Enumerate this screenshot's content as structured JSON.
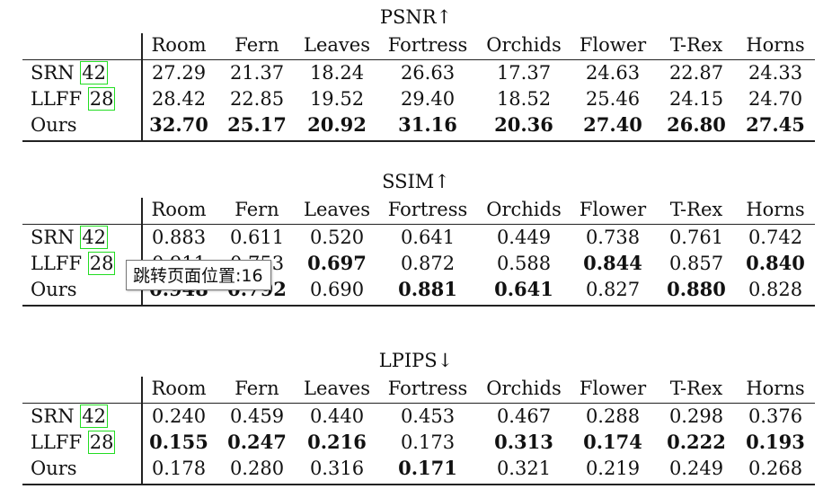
{
  "columns": [
    "Room",
    "Fern",
    "Leaves",
    "Fortress",
    "Orchids",
    "Flower",
    "T-Rex",
    "Horns"
  ],
  "tables": [
    {
      "title": "PSNR↑",
      "rows": [
        {
          "method": "SRN",
          "cite": "42",
          "values": [
            "27.29",
            "21.37",
            "18.24",
            "26.63",
            "17.37",
            "24.63",
            "22.87",
            "24.33"
          ],
          "bold": [
            false,
            false,
            false,
            false,
            false,
            false,
            false,
            false
          ]
        },
        {
          "method": "LLFF",
          "cite": "28",
          "values": [
            "28.42",
            "22.85",
            "19.52",
            "29.40",
            "18.52",
            "25.46",
            "24.15",
            "24.70"
          ],
          "bold": [
            false,
            false,
            false,
            false,
            false,
            false,
            false,
            false
          ]
        },
        {
          "method": "Ours",
          "cite": "",
          "values": [
            "32.70",
            "25.17",
            "20.92",
            "31.16",
            "20.36",
            "27.40",
            "26.80",
            "27.45"
          ],
          "bold": [
            true,
            true,
            true,
            true,
            true,
            true,
            true,
            true
          ]
        }
      ]
    },
    {
      "title": "SSIM↑",
      "rows": [
        {
          "method": "SRN",
          "cite": "42",
          "values": [
            "0.883",
            "0.611",
            "0.520",
            "0.641",
            "0.449",
            "0.738",
            "0.761",
            "0.742"
          ],
          "bold": [
            false,
            false,
            false,
            false,
            false,
            false,
            false,
            false
          ]
        },
        {
          "method": "LLFF",
          "cite": "28",
          "values": [
            "0.911",
            "0.753",
            "0.697",
            "0.872",
            "0.588",
            "0.844",
            "0.857",
            "0.840"
          ],
          "bold": [
            false,
            false,
            true,
            false,
            false,
            true,
            false,
            true
          ]
        },
        {
          "method": "Ours",
          "cite": "",
          "values": [
            "0.948",
            "0.792",
            "0.690",
            "0.881",
            "0.641",
            "0.827",
            "0.880",
            "0.828"
          ],
          "bold": [
            true,
            true,
            false,
            true,
            true,
            false,
            true,
            false
          ]
        }
      ]
    },
    {
      "title": "LPIPS↓",
      "rows": [
        {
          "method": "SRN",
          "cite": "42",
          "values": [
            "0.240",
            "0.459",
            "0.440",
            "0.453",
            "0.467",
            "0.288",
            "0.298",
            "0.376"
          ],
          "bold": [
            false,
            false,
            false,
            false,
            false,
            false,
            false,
            false
          ]
        },
        {
          "method": "LLFF",
          "cite": "28",
          "values": [
            "0.155",
            "0.247",
            "0.216",
            "0.173",
            "0.313",
            "0.174",
            "0.222",
            "0.193"
          ],
          "bold": [
            true,
            true,
            true,
            false,
            true,
            true,
            true,
            true
          ]
        },
        {
          "method": "Ours",
          "cite": "",
          "values": [
            "0.178",
            "0.280",
            "0.316",
            "0.171",
            "0.321",
            "0.219",
            "0.249",
            "0.268"
          ],
          "bold": [
            false,
            false,
            false,
            true,
            false,
            false,
            false,
            false
          ]
        }
      ]
    }
  ],
  "tooltip": "跳转页面位置:16",
  "colors": {
    "cite_box": "#22dd22",
    "rule": "#222222"
  }
}
